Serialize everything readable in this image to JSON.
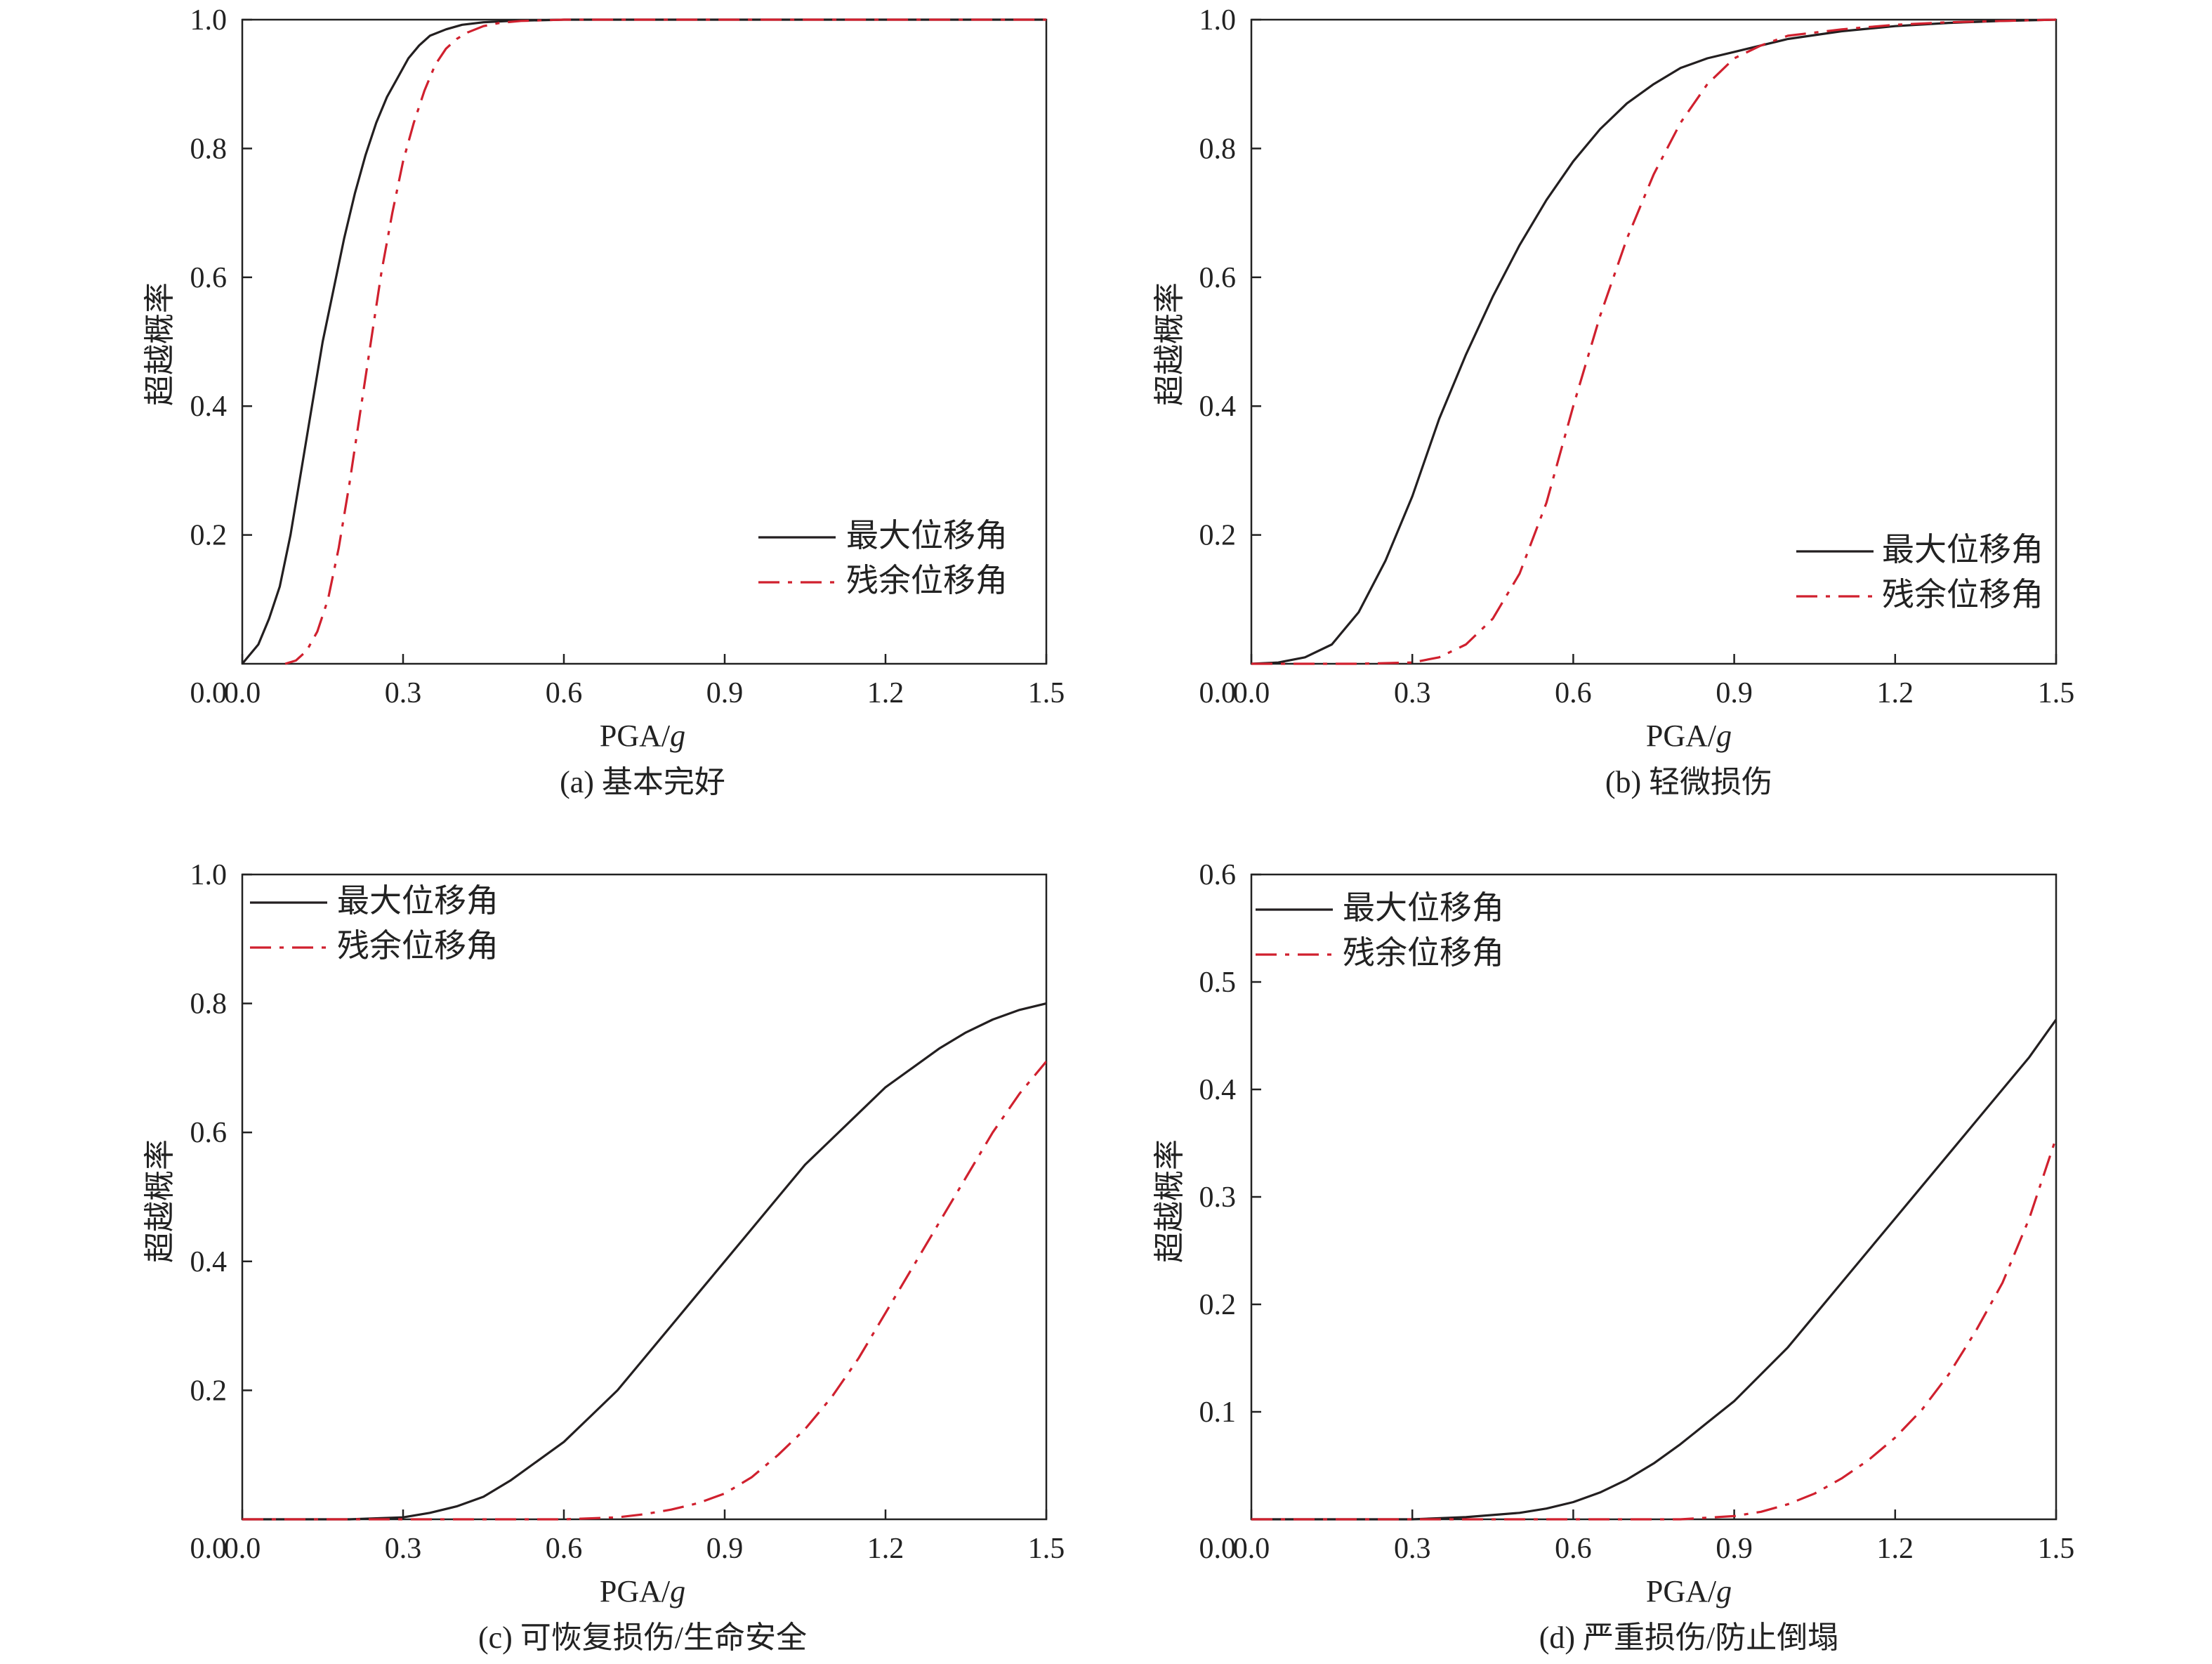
{
  "legend": {
    "max_label": "最大位移角",
    "res_label": "残余位移角"
  },
  "colors": {
    "max": "#231f20",
    "res": "#d0202e"
  },
  "chart_data": [
    {
      "type": "line",
      "caption": "(a) 基本完好",
      "xlabel_main": "PGA/",
      "xlabel_ital": "g",
      "ylabel": "超越概率",
      "xlim": [
        0,
        1.5
      ],
      "ylim": [
        0,
        1.0
      ],
      "xticks": [
        "0.0",
        "0.3",
        "0.6",
        "0.9",
        "1.2",
        "1.5"
      ],
      "yticks": [
        "0.2",
        "0.4",
        "0.6",
        "0.8",
        "1.0"
      ],
      "legend_position": "lower-right",
      "series": [
        {
          "name": "最大位移角",
          "style": "solid",
          "x": [
            0,
            0.03,
            0.05,
            0.07,
            0.09,
            0.11,
            0.13,
            0.15,
            0.17,
            0.19,
            0.21,
            0.23,
            0.25,
            0.27,
            0.29,
            0.31,
            0.33,
            0.35,
            0.38,
            0.41,
            0.45,
            0.5,
            0.6,
            0.8,
            1.0,
            1.5
          ],
          "y": [
            0,
            0.03,
            0.07,
            0.12,
            0.2,
            0.3,
            0.4,
            0.5,
            0.58,
            0.66,
            0.73,
            0.79,
            0.84,
            0.88,
            0.91,
            0.94,
            0.96,
            0.975,
            0.985,
            0.992,
            0.996,
            0.998,
            1.0,
            1.0,
            1.0,
            1.0
          ]
        },
        {
          "name": "残余位移角",
          "style": "dashdot",
          "x": [
            0.08,
            0.1,
            0.12,
            0.14,
            0.16,
            0.18,
            0.2,
            0.22,
            0.24,
            0.26,
            0.28,
            0.3,
            0.32,
            0.34,
            0.36,
            0.38,
            0.4,
            0.42,
            0.45,
            0.48,
            0.52,
            0.6,
            0.8,
            1.0,
            1.5
          ],
          "y": [
            0,
            0.005,
            0.02,
            0.05,
            0.1,
            0.18,
            0.28,
            0.39,
            0.5,
            0.61,
            0.7,
            0.78,
            0.84,
            0.89,
            0.93,
            0.955,
            0.97,
            0.98,
            0.99,
            0.995,
            0.998,
            1.0,
            1.0,
            1.0,
            1.0
          ]
        }
      ]
    },
    {
      "type": "line",
      "caption": "(b) 轻微损伤",
      "xlabel_main": "PGA/",
      "xlabel_ital": "g",
      "ylabel": "超越概率",
      "xlim": [
        0,
        1.5
      ],
      "ylim": [
        0,
        1.0
      ],
      "xticks": [
        "0.0",
        "0.3",
        "0.6",
        "0.9",
        "1.2",
        "1.5"
      ],
      "yticks": [
        "0.2",
        "0.4",
        "0.6",
        "0.8",
        "1.0"
      ],
      "legend_position": "lower-right",
      "series": [
        {
          "name": "最大位移角",
          "style": "solid",
          "x": [
            0,
            0.05,
            0.1,
            0.15,
            0.2,
            0.25,
            0.3,
            0.35,
            0.4,
            0.45,
            0.5,
            0.55,
            0.6,
            0.65,
            0.7,
            0.75,
            0.8,
            0.85,
            0.9,
            0.95,
            1.0,
            1.1,
            1.2,
            1.3,
            1.4,
            1.5
          ],
          "y": [
            0,
            0.002,
            0.01,
            0.03,
            0.08,
            0.16,
            0.26,
            0.38,
            0.48,
            0.57,
            0.65,
            0.72,
            0.78,
            0.83,
            0.87,
            0.9,
            0.925,
            0.94,
            0.95,
            0.96,
            0.97,
            0.982,
            0.99,
            0.995,
            0.998,
            1.0
          ]
        },
        {
          "name": "残余位移角",
          "style": "dashdot",
          "x": [
            0,
            0.2,
            0.3,
            0.35,
            0.4,
            0.45,
            0.5,
            0.55,
            0.6,
            0.65,
            0.7,
            0.75,
            0.8,
            0.85,
            0.9,
            0.95,
            1.0,
            1.1,
            1.2,
            1.3,
            1.4,
            1.5
          ],
          "y": [
            0,
            0,
            0.002,
            0.01,
            0.03,
            0.07,
            0.14,
            0.25,
            0.4,
            0.54,
            0.66,
            0.76,
            0.84,
            0.9,
            0.94,
            0.96,
            0.975,
            0.985,
            0.992,
            0.996,
            0.998,
            1.0
          ]
        }
      ]
    },
    {
      "type": "line",
      "caption": "(c) 可恢复损伤/生命安全",
      "xlabel_main": "PGA/",
      "xlabel_ital": "g",
      "ylabel": "超越概率",
      "xlim": [
        0,
        1.5
      ],
      "ylim": [
        0,
        1.0
      ],
      "xticks": [
        "0.0",
        "0.3",
        "0.6",
        "0.9",
        "1.2",
        "1.5"
      ],
      "yticks": [
        "0.2",
        "0.4",
        "0.6",
        "0.8",
        "1.0"
      ],
      "legend_position": "upper-left",
      "series": [
        {
          "name": "最大位移角",
          "style": "solid",
          "x": [
            0,
            0.2,
            0.3,
            0.35,
            0.4,
            0.45,
            0.5,
            0.55,
            0.6,
            0.65,
            0.7,
            0.75,
            0.8,
            0.85,
            0.9,
            0.95,
            1.0,
            1.05,
            1.1,
            1.15,
            1.2,
            1.25,
            1.3,
            1.35,
            1.4,
            1.45,
            1.5
          ],
          "y": [
            0,
            0.0,
            0.003,
            0.01,
            0.02,
            0.035,
            0.06,
            0.09,
            0.12,
            0.16,
            0.2,
            0.25,
            0.3,
            0.35,
            0.4,
            0.45,
            0.5,
            0.55,
            0.59,
            0.63,
            0.67,
            0.7,
            0.73,
            0.755,
            0.775,
            0.79,
            0.8
          ]
        },
        {
          "name": "残余位移角",
          "style": "dashdot",
          "x": [
            0,
            0.6,
            0.7,
            0.75,
            0.8,
            0.85,
            0.9,
            0.95,
            1.0,
            1.05,
            1.1,
            1.15,
            1.2,
            1.25,
            1.3,
            1.35,
            1.4,
            1.45,
            1.5
          ],
          "y": [
            0,
            0,
            0.003,
            0.008,
            0.015,
            0.025,
            0.04,
            0.065,
            0.1,
            0.14,
            0.19,
            0.25,
            0.32,
            0.39,
            0.46,
            0.53,
            0.6,
            0.66,
            0.71
          ]
        }
      ]
    },
    {
      "type": "line",
      "caption": "(d) 严重损伤/防止倒塌",
      "xlabel_main": "PGA/",
      "xlabel_ital": "g",
      "ylabel": "超越概率",
      "xlim": [
        0,
        1.5
      ],
      "ylim": [
        0,
        0.6
      ],
      "xticks": [
        "0.0",
        "0.3",
        "0.6",
        "0.9",
        "1.2",
        "1.5"
      ],
      "yticks": [
        "0.1",
        "0.2",
        "0.3",
        "0.4",
        "0.5",
        "0.6"
      ],
      "legend_position": "upper-left",
      "series": [
        {
          "name": "最大位移角",
          "style": "solid",
          "x": [
            0,
            0.3,
            0.4,
            0.5,
            0.55,
            0.6,
            0.65,
            0.7,
            0.75,
            0.8,
            0.85,
            0.9,
            0.95,
            1.0,
            1.05,
            1.1,
            1.15,
            1.2,
            1.25,
            1.3,
            1.35,
            1.4,
            1.45,
            1.5
          ],
          "y": [
            0,
            0,
            0.002,
            0.006,
            0.01,
            0.016,
            0.025,
            0.037,
            0.052,
            0.07,
            0.09,
            0.11,
            0.135,
            0.16,
            0.19,
            0.22,
            0.25,
            0.28,
            0.31,
            0.34,
            0.37,
            0.4,
            0.43,
            0.465
          ]
        },
        {
          "name": "残余位移角",
          "style": "dashdot",
          "x": [
            0,
            0.8,
            0.9,
            0.95,
            1.0,
            1.05,
            1.1,
            1.15,
            1.2,
            1.25,
            1.3,
            1.35,
            1.4,
            1.45,
            1.5
          ],
          "y": [
            0,
            0,
            0.003,
            0.007,
            0.014,
            0.024,
            0.038,
            0.055,
            0.076,
            0.102,
            0.135,
            0.175,
            0.22,
            0.28,
            0.355
          ]
        }
      ]
    }
  ]
}
